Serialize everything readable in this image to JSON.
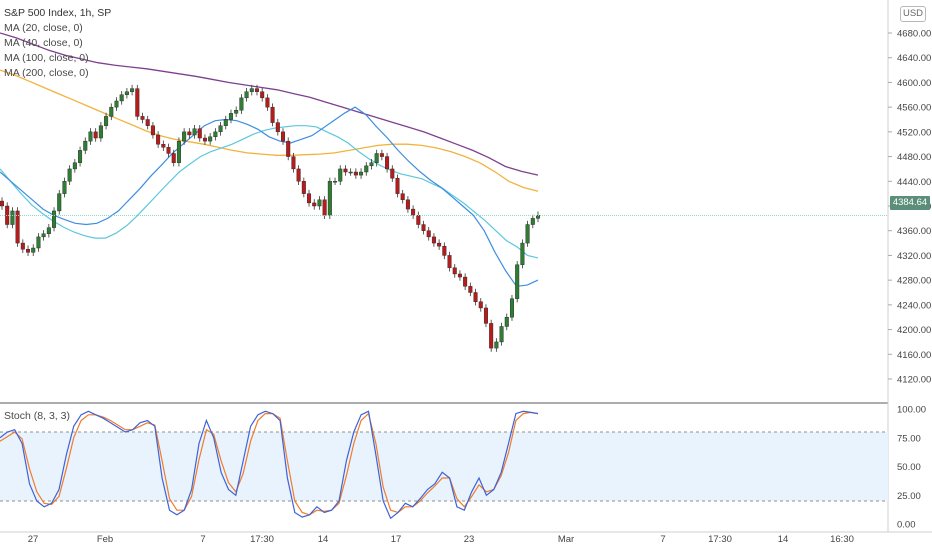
{
  "header": {
    "symbol_title": "S&P 500 Index, 1h, SP",
    "indicators": [
      "MA (20, close, 0)",
      "MA (40, close, 0)",
      "MA (100, close, 0)",
      "MA (200, close, 0)"
    ],
    "currency": "USD"
  },
  "price_pane": {
    "last_price_label": "4384.64",
    "y_ticks": [
      "4680.00",
      "4640.00",
      "4600.00",
      "4560.00",
      "4520.00",
      "4480.00",
      "4440.00",
      "4400.00",
      "4360.00",
      "4320.00",
      "4280.00",
      "4240.00",
      "4200.00",
      "4160.00",
      "4120.00"
    ]
  },
  "stoch_pane": {
    "label": "Stoch (8, 3, 3)",
    "y_ticks": [
      "100.00",
      "75.00",
      "50.00",
      "25.00",
      "0.00"
    ]
  },
  "x_axis": {
    "ticks": [
      "27",
      "Feb",
      "7",
      "17:30",
      "14",
      "17",
      "23",
      "Mar",
      "7",
      "17:30",
      "14",
      "16:30"
    ]
  },
  "chart_data": {
    "type": "candlestick",
    "ylim": [
      4100,
      4690
    ],
    "last_price": 4384.64,
    "close_series": [
      4400,
      4370,
      4392,
      4340,
      4330,
      4325,
      4332,
      4350,
      4355,
      4365,
      4392,
      4420,
      4440,
      4460,
      4470,
      4490,
      4505,
      4520,
      4510,
      4530,
      4545,
      4560,
      4570,
      4580,
      4585,
      4590,
      4545,
      4540,
      4530,
      4515,
      4500,
      4495,
      4485,
      4470,
      4505,
      4520,
      4515,
      4525,
      4510,
      4505,
      4512,
      4520,
      4530,
      4540,
      4550,
      4555,
      4575,
      4585,
      4590,
      4585,
      4575,
      4560,
      4535,
      4520,
      4505,
      4480,
      4460,
      4440,
      4420,
      4405,
      4400,
      4410,
      4385,
      4440,
      4440,
      4460,
      4455,
      4455,
      4450,
      4455,
      4465,
      4470,
      4485,
      4480,
      4460,
      4445,
      4420,
      4410,
      4395,
      4385,
      4370,
      4360,
      4350,
      4340,
      4335,
      4320,
      4300,
      4290,
      4285,
      4270,
      4260,
      4245,
      4235,
      4210,
      4170,
      4180,
      4205,
      4220,
      4250,
      4305,
      4340,
      4370,
      4380,
      4385
    ],
    "ma20": [
      4455,
      4440,
      4425,
      4410,
      4395,
      4385,
      4378,
      4372,
      4370,
      4372,
      4380,
      4392,
      4410,
      4428,
      4448,
      4466,
      4485,
      4500,
      4515,
      4530,
      4538,
      4540,
      4538,
      4532,
      4524,
      4512,
      4505,
      4502,
      4508,
      4514,
      4526,
      4538,
      4550,
      4560,
      4548,
      4528,
      4510,
      4490,
      4472,
      4456,
      4442,
      4430,
      4415,
      4400,
      4385,
      4360,
      4325,
      4295,
      4270,
      4272,
      4280
    ],
    "ma40": [
      4460,
      4440,
      4420,
      4402,
      4388,
      4376,
      4366,
      4358,
      4352,
      4348,
      4348,
      4356,
      4368,
      4384,
      4402,
      4420,
      4438,
      4455,
      4468,
      4480,
      4488,
      4494,
      4500,
      4508,
      4516,
      4522,
      4526,
      4528,
      4530,
      4530,
      4528,
      4520,
      4512,
      4502,
      4488,
      4476,
      4466,
      4458,
      4452,
      4448,
      4444,
      4436,
      4428,
      4416,
      4404,
      4390,
      4376,
      4360,
      4344,
      4334,
      4320,
      4316
    ],
    "ma100": [
      4620,
      4612,
      4602,
      4592,
      4582,
      4572,
      4562,
      4552,
      4542,
      4532,
      4522,
      4514,
      4508,
      4504,
      4500,
      4495,
      4490,
      4486,
      4484,
      4482,
      4482,
      4483,
      4484,
      4486,
      4490,
      4494,
      4498,
      4500,
      4500,
      4498,
      4494,
      4488,
      4480,
      4470,
      4456,
      4440,
      4430,
      4424
    ],
    "ma200": [
      4680,
      4672,
      4662,
      4652,
      4644,
      4638,
      4632,
      4628,
      4625,
      4622,
      4618,
      4614,
      4610,
      4605,
      4600,
      4596,
      4592,
      4588,
      4582,
      4576,
      4568,
      4560,
      4552,
      4544,
      4536,
      4528,
      4520,
      4510,
      4500,
      4490,
      4478,
      4464,
      4456,
      4450
    ],
    "stoch_k": [
      75,
      80,
      82,
      70,
      35,
      20,
      15,
      18,
      30,
      60,
      85,
      95,
      98,
      95,
      92,
      88,
      84,
      80,
      82,
      88,
      90,
      85,
      40,
      12,
      8,
      12,
      30,
      70,
      90,
      75,
      45,
      30,
      25,
      55,
      85,
      95,
      98,
      96,
      90,
      40,
      10,
      6,
      8,
      15,
      10,
      12,
      20,
      55,
      80,
      95,
      98,
      60,
      20,
      5,
      10,
      18,
      15,
      22,
      30,
      35,
      45,
      40,
      15,
      12,
      28,
      40,
      25,
      30,
      45,
      70,
      96,
      98,
      97,
      96
    ],
    "stoch_d": [
      72,
      76,
      80,
      74,
      48,
      28,
      18,
      17,
      24,
      48,
      75,
      90,
      95,
      95,
      93,
      90,
      86,
      82,
      82,
      85,
      88,
      86,
      55,
      22,
      12,
      12,
      24,
      56,
      82,
      78,
      55,
      36,
      28,
      44,
      72,
      90,
      96,
      96,
      92,
      55,
      20,
      10,
      8,
      12,
      11,
      12,
      18,
      42,
      70,
      90,
      96,
      70,
      32,
      12,
      10,
      15,
      15,
      20,
      27,
      33,
      40,
      40,
      22,
      15,
      24,
      34,
      28,
      30,
      42,
      62,
      90,
      96,
      97,
      96
    ],
    "stoch_levels": [
      80,
      20
    ]
  }
}
